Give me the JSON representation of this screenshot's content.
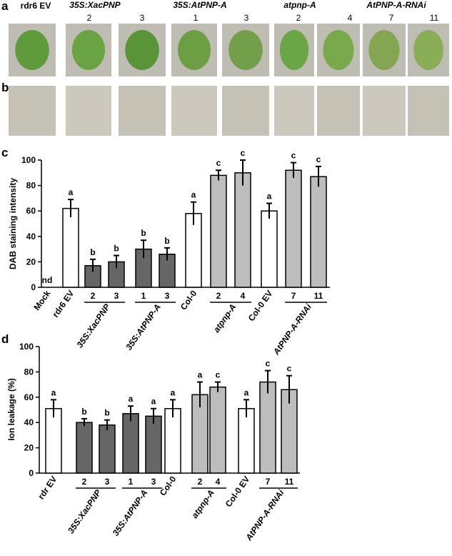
{
  "panel_a": {
    "letter": "a",
    "genotypes": [
      "rdr6 EV",
      "35S:XacPNP",
      "35S:AtPNP-A",
      "atpnp-A",
      "AtPNP-A-RNAi"
    ],
    "lines": [
      "2",
      "3",
      "1",
      "3",
      "2",
      "4",
      "7",
      "11"
    ]
  },
  "panel_b": {
    "letter": "b"
  },
  "chart_data": [
    {
      "type": "bar",
      "panel_label": "c",
      "ylabel": "DAB staining intensity",
      "categories": [
        "Mock",
        "rdr6 EV",
        "2",
        "3",
        "1",
        "3",
        "Col-0",
        "2",
        "4",
        "Col-0 EV",
        "7",
        "11"
      ],
      "group_labels": [
        "35S:XacPNP",
        "35S:AtPNP-A",
        "atpnp-A",
        "AtPNP-A-RNAi"
      ],
      "values": [
        null,
        62,
        17,
        20,
        30,
        26,
        58,
        88,
        90,
        60,
        92,
        87
      ],
      "errors": [
        null,
        7,
        5,
        5,
        7,
        5,
        9,
        4,
        10,
        6,
        6,
        8
      ],
      "value_labels": [
        "nd",
        null,
        null,
        null,
        null,
        null,
        null,
        null,
        null,
        null,
        null,
        null
      ],
      "significance": [
        null,
        "a",
        "b",
        "b",
        "b",
        "b",
        "a",
        "c",
        "c",
        "a",
        "c",
        "c"
      ],
      "colors": [
        "#ffffff",
        "#ffffff",
        "#666666",
        "#666666",
        "#666666",
        "#666666",
        "#ffffff",
        "#bdbdbd",
        "#bdbdbd",
        "#ffffff",
        "#bdbdbd",
        "#bdbdbd"
      ],
      "ylim": [
        0,
        100
      ],
      "yticks": [
        0,
        20,
        40,
        60,
        80,
        100
      ]
    },
    {
      "type": "bar",
      "panel_label": "d",
      "ylabel": "Ion leakage (%)",
      "categories": [
        "rdr EV",
        "2",
        "3",
        "1",
        "3",
        "Col-0",
        "2",
        "4",
        "Col-0 EV",
        "7",
        "11"
      ],
      "group_labels": [
        "35S:XacPNP",
        "35S:AtPNP-A",
        "atpnp-A",
        "AtPNP-A-RNAi"
      ],
      "values": [
        51,
        40,
        38,
        47,
        45,
        51,
        62,
        68,
        51,
        72,
        66
      ],
      "errors": [
        7,
        3,
        4,
        6,
        6,
        7,
        10,
        4,
        7,
        9,
        11
      ],
      "significance": [
        "a",
        "b",
        "b",
        "a",
        "a",
        "a",
        "a",
        "c",
        "a",
        "c",
        "c"
      ],
      "colors": [
        "#ffffff",
        "#666666",
        "#666666",
        "#666666",
        "#666666",
        "#ffffff",
        "#bdbdbd",
        "#bdbdbd",
        "#ffffff",
        "#bdbdbd",
        "#bdbdbd"
      ],
      "ylim": [
        0,
        100
      ],
      "yticks": [
        0,
        20,
        40,
        60,
        80,
        100
      ]
    }
  ]
}
